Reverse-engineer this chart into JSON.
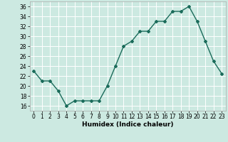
{
  "x": [
    0,
    1,
    2,
    3,
    4,
    5,
    6,
    7,
    8,
    9,
    10,
    11,
    12,
    13,
    14,
    15,
    16,
    17,
    18,
    19,
    20,
    21,
    22,
    23
  ],
  "y": [
    23,
    21,
    21,
    19,
    16,
    17,
    17,
    17,
    17,
    20,
    24,
    28,
    29,
    31,
    31,
    33,
    33,
    35,
    35,
    36,
    33,
    29,
    25,
    22.5
  ],
  "line_color": "#1a6b5a",
  "marker": "D",
  "marker_size": 2,
  "xlabel": "Humidex (Indice chaleur)",
  "xlim": [
    -0.5,
    23.5
  ],
  "ylim": [
    15,
    37
  ],
  "yticks": [
    16,
    18,
    20,
    22,
    24,
    26,
    28,
    30,
    32,
    34,
    36
  ],
  "xticks": [
    0,
    1,
    2,
    3,
    4,
    5,
    6,
    7,
    8,
    9,
    10,
    11,
    12,
    13,
    14,
    15,
    16,
    17,
    18,
    19,
    20,
    21,
    22,
    23
  ],
  "bg_color": "#cce9e1",
  "grid_color": "#ffffff",
  "grid_linewidth": 0.7,
  "tick_fontsize": 5.5,
  "xlabel_fontsize": 6.5
}
